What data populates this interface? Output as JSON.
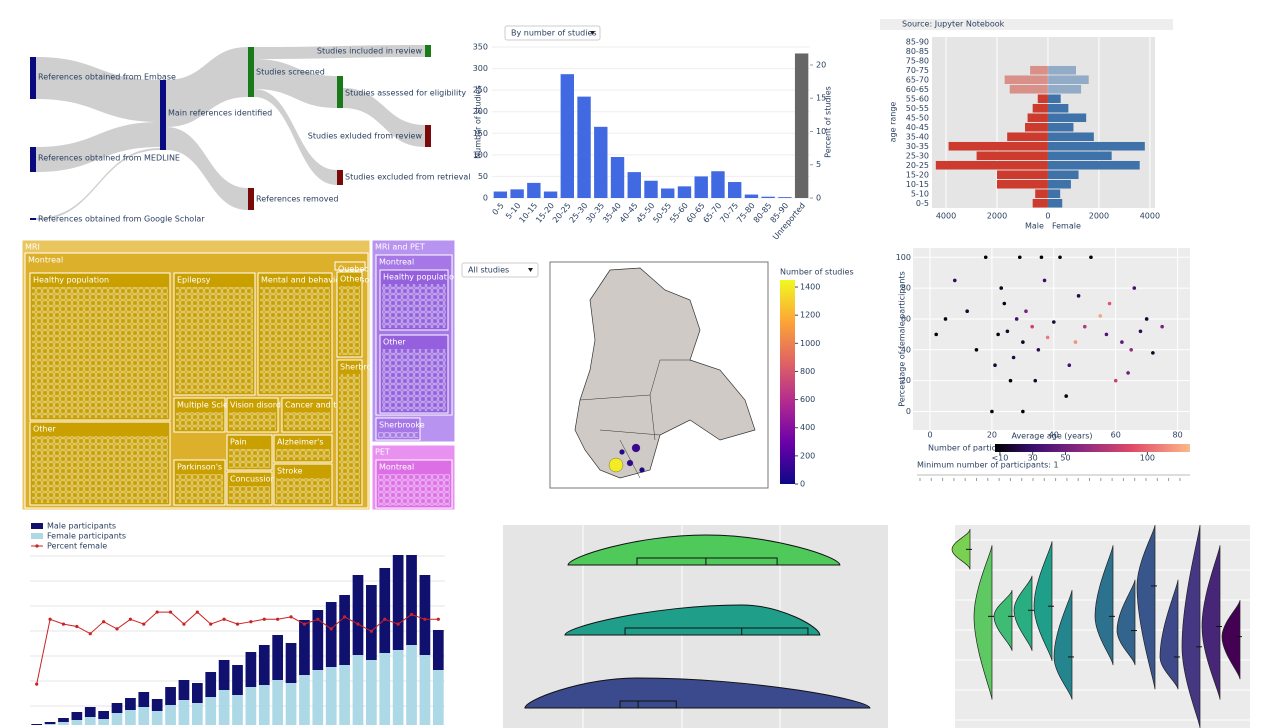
{
  "chart_data": [
    {
      "type": "sankey",
      "nodes": [
        {
          "label": "References obtained from Embase"
        },
        {
          "label": "References obtained from MEDLINE"
        },
        {
          "label": "References obtained from Google Scholar"
        },
        {
          "label": "Main references identified"
        },
        {
          "label": "Studies screened"
        },
        {
          "label": "References removed"
        },
        {
          "label": "Studies included in review"
        },
        {
          "label": "Studies assessed for eligibility"
        },
        {
          "label": "Studies exluded from review"
        },
        {
          "label": "Studies excluded from retrieval"
        }
      ]
    },
    {
      "type": "bar",
      "dropdown": "By number of studies",
      "ylabel": "Number of studies",
      "y2label": "Percent of studies",
      "categories": [
        "0-5",
        "5-10",
        "10-15",
        "15-20",
        "20-25",
        "25-30",
        "30-35",
        "35-40",
        "40-45",
        "45-50",
        "50-55",
        "55-60",
        "60-65",
        "65-70",
        "70-75",
        "75-80",
        "80-85",
        "85-90",
        "Unreported"
      ],
      "values": [
        15,
        20,
        35,
        15,
        287,
        235,
        165,
        95,
        60,
        40,
        22,
        27,
        50,
        62,
        37,
        8,
        3,
        2,
        335
      ],
      "colors": [
        "#4169e1",
        "#4169e1",
        "#4169e1",
        "#4169e1",
        "#4169e1",
        "#4169e1",
        "#4169e1",
        "#4169e1",
        "#4169e1",
        "#4169e1",
        "#4169e1",
        "#4169e1",
        "#4169e1",
        "#4169e1",
        "#4169e1",
        "#4169e1",
        "#4169e1",
        "#4169e1",
        "#666666"
      ],
      "ylim": [
        0,
        350
      ],
      "yticks": [
        0,
        50,
        100,
        150,
        200,
        250,
        300,
        350
      ],
      "y2lim": [
        0,
        22.7
      ],
      "y2ticks": [
        0,
        5,
        10,
        15,
        20
      ]
    },
    {
      "type": "pyramid",
      "title": "Source: Jupyter Notebook",
      "ylabel": "age range",
      "xlabels": [
        "Male",
        "Female"
      ],
      "categories": [
        "0-5",
        "5-10",
        "10-15",
        "15-20",
        "20-25",
        "25-30",
        "30-35",
        "35-40",
        "40-45",
        "45-50",
        "50-55",
        "55-60",
        "60-65",
        "65-70",
        "70-75",
        "75-80",
        "80-85",
        "85-90"
      ],
      "series": [
        {
          "name": "Male",
          "color": "#cc3b2e",
          "values": [
            600,
            500,
            2000,
            2000,
            4400,
            2800,
            3900,
            1600,
            900,
            800,
            600,
            400,
            1500,
            1700,
            700,
            0,
            0,
            0
          ]
        },
        {
          "name": "Female",
          "color": "#3f72a8",
          "values": [
            560,
            480,
            900,
            1200,
            3600,
            2500,
            3800,
            1800,
            1000,
            1500,
            800,
            500,
            1300,
            1600,
            1100,
            0,
            0,
            0
          ]
        }
      ],
      "xlim": [
        -4550,
        4200
      ],
      "xticks": [
        {
          "value": -4000,
          "label": "4000"
        },
        {
          "value": -2000,
          "label": "2000"
        },
        0,
        2000,
        4000
      ]
    },
    {
      "type": "treemap",
      "nodes": [
        {
          "label": "MRI"
        },
        {
          "label": "Montreal"
        },
        {
          "label": "Healthy population"
        },
        {
          "label": "Epilepsy"
        },
        {
          "label": "Mental and behavioral disorders"
        },
        {
          "label": "Other"
        },
        {
          "label": "Multiple Sclerosis"
        },
        {
          "label": "Vision disorders"
        },
        {
          "label": "Cancer and tumors"
        },
        {
          "label": "Pain"
        },
        {
          "label": "Alzheimer's"
        },
        {
          "label": "Parkinson's"
        },
        {
          "label": "Concussion and injury"
        },
        {
          "label": "Stroke"
        },
        {
          "label": "Quebec City"
        },
        {
          "label": "Other"
        },
        {
          "label": "Sherbrooke"
        },
        {
          "label": "MRI and PET"
        },
        {
          "label": "Montreal"
        },
        {
          "label": "Healthy population"
        },
        {
          "label": "Other"
        },
        {
          "label": "Sherbrooke"
        },
        {
          "label": "PET"
        },
        {
          "label": "Montreal"
        }
      ]
    },
    {
      "type": "map",
      "dropdown": "All studies",
      "colorbar_title": "Number of studies",
      "clim": [
        0,
        1450
      ],
      "cticks": [
        0,
        200,
        400,
        600,
        800,
        1000,
        1200,
        1400
      ],
      "values": [
        1400,
        150,
        120,
        80,
        40
      ]
    },
    {
      "type": "scatter",
      "xlabel": "Average age (years)",
      "ylabel": "Percentage of female participants",
      "x": [
        25,
        28,
        30,
        22,
        33,
        35,
        24,
        27,
        31,
        38,
        40,
        26,
        23,
        29,
        36,
        20,
        30,
        45,
        50,
        55,
        62,
        65,
        68,
        70,
        72,
        60,
        58,
        48,
        44,
        75,
        2,
        5,
        8,
        15,
        12,
        18,
        42,
        52,
        66,
        64,
        34,
        21,
        37,
        47,
        57
      ],
      "values": [
        52,
        60,
        45,
        50,
        55,
        40,
        70,
        35,
        65,
        48,
        58,
        20,
        80,
        100,
        100,
        0,
        0,
        30,
        55,
        62,
        45,
        40,
        52,
        60,
        38,
        20,
        70,
        75,
        10,
        55,
        50,
        60,
        85,
        40,
        65,
        100,
        100,
        100,
        80,
        25,
        20,
        30,
        85,
        45,
        50
      ],
      "color_values": [
        20,
        40,
        15,
        10,
        90,
        30,
        12,
        25,
        60,
        110,
        20,
        8,
        15,
        5,
        7,
        10,
        6,
        40,
        80,
        120,
        50,
        70,
        30,
        20,
        15,
        90,
        100,
        25,
        12,
        60,
        10,
        12,
        30,
        8,
        20,
        4,
        9,
        6,
        40,
        55,
        18,
        22,
        35,
        115,
        45
      ],
      "xlim": [
        -5.5,
        84
      ],
      "xticks": [
        0,
        20,
        40,
        60,
        80
      ],
      "ylim": [
        -12,
        106
      ],
      "yticks": [
        0,
        20,
        40,
        60,
        80,
        100
      ],
      "colorbar_title": "Number of participants",
      "clim": [
        7,
        126
      ],
      "cticks": [
        {
          "value": 10,
          "label": "<10"
        },
        30,
        50,
        100
      ],
      "note": "Minimum number of participants: 1"
    },
    {
      "type": "bar_line",
      "categories": [
        null,
        null,
        null,
        null,
        null,
        null,
        null,
        null,
        null,
        null,
        null,
        null,
        null,
        null,
        null,
        null,
        null,
        null,
        null,
        null,
        null,
        null,
        null,
        null,
        null,
        null,
        null,
        null,
        null,
        null,
        null
      ],
      "series": [
        {
          "name": "Male participants",
          "color": "#10106e",
          "values": [
            1,
            2,
            4,
            8,
            10,
            8,
            10,
            12,
            15,
            12,
            18,
            20,
            20,
            25,
            30,
            30,
            35,
            40,
            45,
            40,
            55,
            60,
            65,
            70,
            80,
            75,
            85,
            95,
            90,
            80,
            40
          ]
        },
        {
          "name": "Female participants",
          "color": "#add8e6",
          "values": [
            0,
            1,
            3,
            5,
            8,
            6,
            12,
            15,
            18,
            14,
            20,
            25,
            22,
            28,
            35,
            30,
            38,
            40,
            45,
            42,
            50,
            55,
            58,
            60,
            70,
            65,
            72,
            75,
            80,
            70,
            55
          ]
        },
        {
          "name": "Percent female",
          "color": "#cc2222",
          "axis": "y2",
          "values": [
            45,
            72,
            70,
            69,
            66,
            71,
            68,
            72,
            70,
            75,
            75,
            70,
            75,
            70,
            72,
            70,
            71,
            72,
            72,
            73,
            70,
            72,
            68,
            73,
            70,
            67,
            72,
            70,
            74,
            72,
            72
          ]
        }
      ],
      "ylim": [
        0,
        185
      ],
      "y2lim": [
        28,
        105
      ]
    },
    {
      "type": "raincloud",
      "xlim": [
        0,
        100
      ],
      "groups": [
        {
          "color": "#4ec95a",
          "min": 16.9,
          "q1": 34.8,
          "median": 52.7,
          "q3": 71.2,
          "max": 87.5
        },
        {
          "color": "#1f9e89",
          "min": 16.1,
          "q1": 31.7,
          "median": 62,
          "q3": 79.2,
          "max": 82.3
        },
        {
          "color": "#3b4a8c",
          "min": 5.7,
          "q1": 30.4,
          "median": 35.1,
          "q3": 45,
          "max": 95.3
        }
      ]
    },
    {
      "type": "raincloud_vertical",
      "ylim": [
        0,
        100
      ],
      "groups": [
        {
          "color": "#7ad151",
          "min": 78,
          "median": 88,
          "max": 98
        },
        {
          "color": "#5ec962",
          "min": 14,
          "median": 55,
          "max": 90
        },
        {
          "color": "#3fbc73",
          "min": 38,
          "median": 55,
          "max": 68
        },
        {
          "color": "#28ae80",
          "min": 38,
          "median": 58,
          "max": 75
        },
        {
          "color": "#1f9e89",
          "min": 33,
          "median": 60,
          "max": 92
        },
        {
          "color": "#25858e",
          "min": 14,
          "median": 35,
          "max": 68
        },
        {
          "color": "#2c728e",
          "min": 31,
          "median": 55,
          "max": 90
        },
        {
          "color": "#32648e",
          "min": 31,
          "median": 48,
          "max": 73
        },
        {
          "color": "#39568c",
          "min": 19,
          "median": 70,
          "max": 100
        },
        {
          "color": "#3e4989",
          "min": 19,
          "median": 35,
          "max": 73
        },
        {
          "color": "#453781",
          "min": 0,
          "median": 40,
          "max": 100
        },
        {
          "color": "#482677",
          "min": 14,
          "median": 50,
          "max": 90
        },
        {
          "color": "#440154",
          "min": 24,
          "median": 45,
          "max": 63
        }
      ]
    }
  ]
}
